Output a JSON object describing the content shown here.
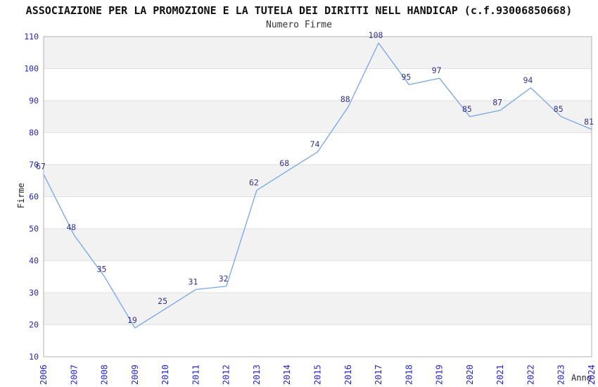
{
  "chart_data": {
    "type": "line",
    "title": "ASSOCIAZIONE PER LA PROMOZIONE E LA TUTELA DEI DIRITTI NELL HANDICAP (c.f.93006850668)",
    "subtitle": "Numero Firme",
    "xlabel": "Anno",
    "ylabel": "Firme",
    "categories": [
      "2006",
      "2007",
      "2008",
      "2009",
      "2010",
      "2011",
      "2012",
      "2013",
      "2014",
      "2015",
      "2016",
      "2017",
      "2018",
      "2019",
      "2020",
      "2021",
      "2022",
      "2023",
      "2024"
    ],
    "values": [
      67,
      48,
      35,
      19,
      25,
      31,
      32,
      62,
      68,
      74,
      88,
      108,
      95,
      97,
      85,
      87,
      94,
      85,
      81
    ],
    "series": [
      {
        "name": "Numero Firme",
        "values": [
          67,
          48,
          35,
          19,
          25,
          31,
          32,
          62,
          68,
          74,
          88,
          108,
          95,
          97,
          85,
          87,
          94,
          85,
          81
        ]
      }
    ],
    "ylim": [
      10,
      110
    ],
    "yticks": [
      10,
      20,
      30,
      40,
      50,
      60,
      70,
      80,
      90,
      100,
      110
    ],
    "grid": "horizontal",
    "banding": "alternating 10-unit bands, gray band at top (100-110)",
    "legend_position": "none",
    "point_labels_visible": true,
    "colors": {
      "line": "#76a5e6",
      "point_label": "#333388",
      "tick_label": "#2424cc",
      "band_gray": "#f2f2f2",
      "band_white": "#ffffff",
      "gridline": "#e0e0e0",
      "frame": "#b0b0b0",
      "title": "#111111",
      "axis_label": "#222222",
      "background": "#ffffff"
    }
  }
}
